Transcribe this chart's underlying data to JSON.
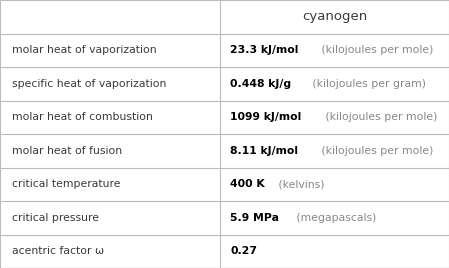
{
  "title": "cyanogen",
  "rows": [
    {
      "label": "molar heat of vaporization",
      "value_bold": "23.3 kJ/mol",
      "value_normal": " (kilojoules per mole)"
    },
    {
      "label": "specific heat of vaporization",
      "value_bold": "0.448 kJ/g",
      "value_normal": " (kilojoules per gram)"
    },
    {
      "label": "molar heat of combustion",
      "value_bold": "1099 kJ/mol",
      "value_normal": " (kilojoules per mole)"
    },
    {
      "label": "molar heat of fusion",
      "value_bold": "8.11 kJ/mol",
      "value_normal": " (kilojoules per mole)"
    },
    {
      "label": "critical temperature",
      "value_bold": "400 K",
      "value_normal": " (kelvins)"
    },
    {
      "label": "critical pressure",
      "value_bold": "5.9 MPa",
      "value_normal": " (megapascals)"
    },
    {
      "label": "acentric factor ω",
      "value_bold": "0.27",
      "value_normal": ""
    }
  ],
  "bg_color": "#ffffff",
  "line_color": "#bbbbbb",
  "label_color": "#3a3a3a",
  "bold_color": "#000000",
  "normal_color": "#888888",
  "header_color": "#3a3a3a",
  "col_split": 0.49,
  "label_fontsize": 7.8,
  "value_fontsize": 7.8,
  "header_fontsize": 9.5
}
